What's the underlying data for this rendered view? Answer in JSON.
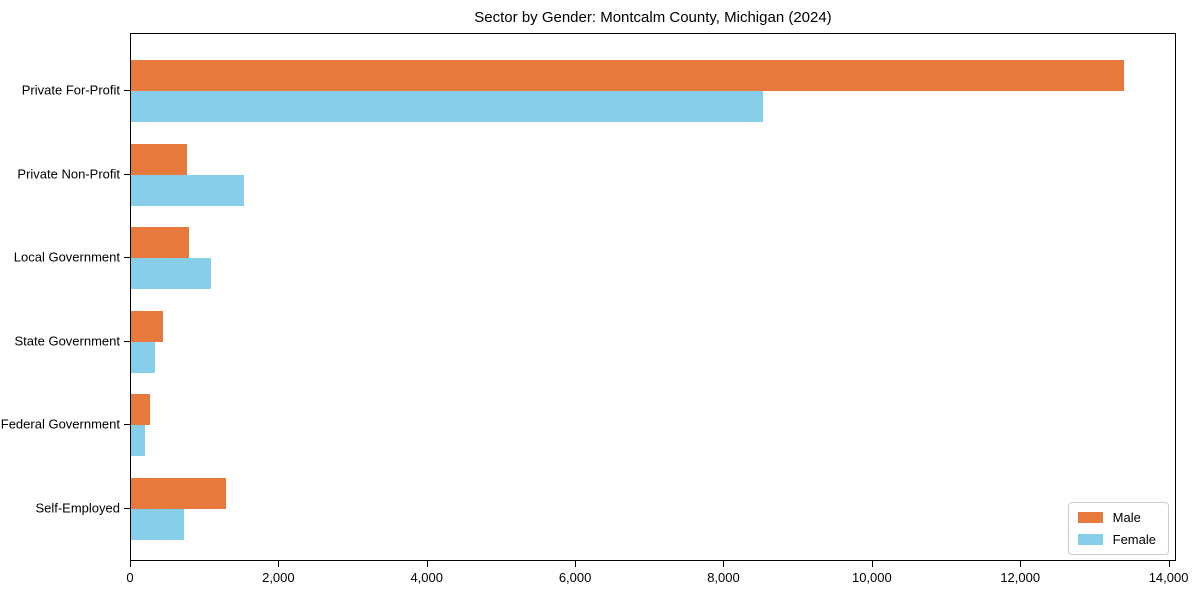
{
  "title": "Sector by Gender: Montcalm County, Michigan (2024)",
  "colors": {
    "male": "#E8793D",
    "female": "#87CEEB",
    "axis": "#000000",
    "legend_border": "#cccccc",
    "background": "#ffffff"
  },
  "chart_data": {
    "type": "bar",
    "orientation": "horizontal",
    "title": "Sector by Gender: Montcalm County, Michigan (2024)",
    "categories": [
      "Private For-Profit",
      "Private Non-Profit",
      "Local Government",
      "State Government",
      "Federal Government",
      "Self-Employed"
    ],
    "series": [
      {
        "name": "Male",
        "color": "#E8793D",
        "values": [
          13410,
          750,
          790,
          430,
          250,
          1280
        ]
      },
      {
        "name": "Female",
        "color": "#87CEEB",
        "values": [
          8530,
          1520,
          1080,
          330,
          190,
          710
        ]
      }
    ],
    "xlabel": "",
    "ylabel": "",
    "xlim": [
      0,
      14100
    ],
    "x_ticks": [
      0,
      2000,
      4000,
      6000,
      8000,
      10000,
      12000,
      14000
    ],
    "x_tick_labels": [
      "0",
      "2,000",
      "4,000",
      "6,000",
      "8,000",
      "10,000",
      "12,000",
      "14,000"
    ],
    "grid": false,
    "legend": {
      "position": "lower right",
      "entries": [
        "Male",
        "Female"
      ]
    }
  }
}
